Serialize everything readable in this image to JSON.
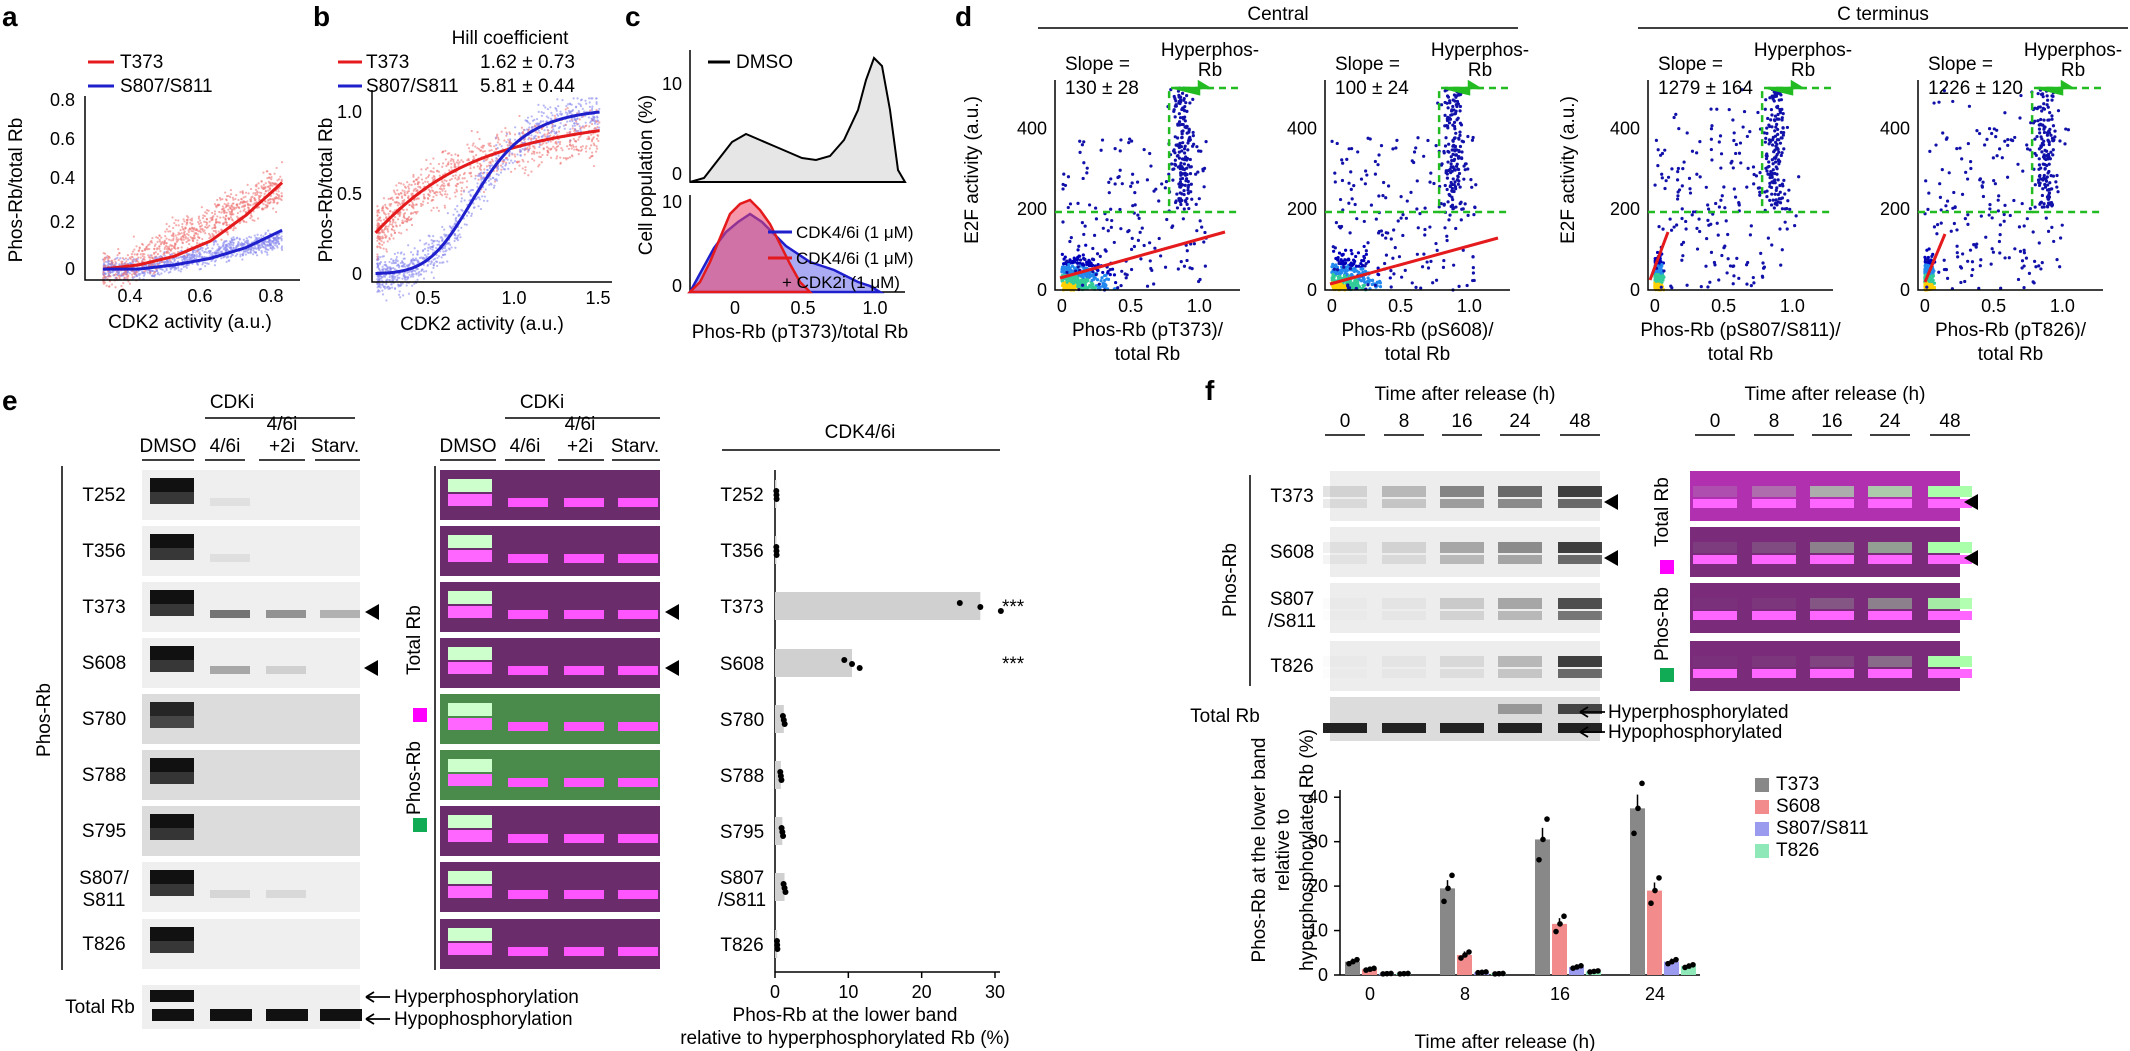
{
  "panels": {
    "a": "a",
    "b": "b",
    "c": "c",
    "d": "d",
    "e": "e",
    "f": "f"
  },
  "colors": {
    "red": "#e41a1c",
    "blue": "#1f1fcc",
    "green": "#22bb22",
    "gray": "#888888",
    "pink": "#f28c8c",
    "lavender": "#9a9aee",
    "mint": "#8ee8b8",
    "magenta": "#ff00ff"
  },
  "panel_a": {
    "xlabel": "CDK2 activity (a.u.)",
    "ylabel": "Phos-Rb/total Rb",
    "legend": [
      "T373",
      "S807/S811"
    ],
    "xticks": [
      "0.4",
      "0.6",
      "0.8"
    ],
    "yticks": [
      "0",
      "0.2",
      "0.4",
      "0.6",
      "0.8"
    ]
  },
  "panel_b": {
    "xlabel": "CDK2 activity (a.u.)",
    "ylabel": "Phos-Rb/total Rb",
    "legend": [
      "T373",
      "S807/S811"
    ],
    "hill_title": "Hill coefficient",
    "hill_values": [
      "1.62 ± 0.73",
      "5.81 ± 0.44"
    ],
    "xticks": [
      "0.5",
      "1.0",
      "1.5"
    ],
    "yticks": [
      "0",
      "0.5",
      "1.0"
    ]
  },
  "panel_c": {
    "ylabel": "Cell population (%)",
    "xlabel": "Phos-Rb (pT373)/total Rb",
    "legend_top": "DMSO",
    "legend_bottom": [
      "CDK4/6i (1 μM)",
      "CDK4/6i (1 μM)",
      "+ CDK2i (1 μM)"
    ],
    "yticks_top": [
      "0",
      "10"
    ],
    "yticks_bottom": [
      "0",
      "10"
    ],
    "xticks": [
      "0",
      "0.5",
      "1.0"
    ]
  },
  "panel_d": {
    "group_central": "Central",
    "group_cterm": "C terminus",
    "ylabel": "E2F activity (a.u.)",
    "hyper_label": [
      "Hyperphos-",
      "Rb"
    ],
    "yticks": [
      "0",
      "200",
      "400"
    ],
    "xticks": [
      "0",
      "0.5",
      "1.0"
    ],
    "subplots": [
      {
        "slope": "130 ± 28",
        "xlabel": [
          "Phos-Rb (pT373)/",
          "total Rb"
        ]
      },
      {
        "slope": "100 ± 24",
        "xlabel": [
          "Phos-Rb (pS608)/",
          "total Rb"
        ]
      },
      {
        "slope": "1279 ± 164",
        "xlabel": [
          "Phos-Rb (pS807/S811)/",
          "total Rb"
        ]
      },
      {
        "slope": "1226 ± 120",
        "xlabel": [
          "Phos-Rb (pT826)/",
          "total Rb"
        ]
      }
    ],
    "slope_label": "Slope ="
  },
  "panel_e": {
    "cdki": "CDKi",
    "lanes": [
      "DMSO",
      "4/6i",
      "4/6i",
      "+2i",
      "Starv."
    ],
    "sites": [
      "T252",
      "T356",
      "T373",
      "S608",
      "S780",
      "S788",
      "S795",
      "S807/",
      "S811",
      "T826"
    ],
    "phos_rb": "Phos-Rb",
    "total_rb": "Total Rb",
    "hyper": "Hyperphosphorylation",
    "hypo": "Hypophosphorylation",
    "merge_label_total": "Total Rb",
    "merge_label_phos": "Phos-Rb",
    "bar_title": "CDK4/6i",
    "bar_sites": [
      "T252",
      "T356",
      "T373",
      "S608",
      "S780",
      "S788",
      "S795",
      "S807",
      "/S811",
      "T826"
    ],
    "bar_values": [
      0.2,
      0.2,
      28.0,
      10.5,
      1.2,
      0.8,
      1.0,
      1.3,
      0.3
    ],
    "sig": "***",
    "bar_xticks": [
      "0",
      "10",
      "20",
      "30"
    ],
    "bar_xlabel": [
      "Phos-Rb at the lower band",
      "relative to hyperphosphorylated Rb (%)"
    ]
  },
  "panel_f": {
    "time_title": "Time after release (h)",
    "times": [
      "0",
      "8",
      "16",
      "24",
      "48"
    ],
    "sites": [
      "T373",
      "S608",
      "S807",
      "/S811",
      "T826"
    ],
    "phos_rb": "Phos-Rb",
    "total_rb": "Total Rb",
    "hyper": "Hyperphosphorylated",
    "hypo": "Hypophosphorylated",
    "merge_total": "Total Rb",
    "merge_phos": "Phos-Rb",
    "legend": [
      "T373",
      "S608",
      "S807/S811",
      "T826"
    ],
    "ylabel": [
      "Phos-Rb at the lower band",
      "relative to",
      "hyperphosphorylated Rb (%)"
    ],
    "xlabel": "Time after release (h)",
    "xticks": [
      "0",
      "8",
      "16",
      "24"
    ],
    "yticks": [
      "0",
      "10",
      "20",
      "30",
      "40"
    ]
  },
  "chart_data": [
    {
      "type": "scatter",
      "panel": "a",
      "xlabel": "CDK2 activity (a.u.)",
      "ylabel": "Phos-Rb/total Rb",
      "series": [
        {
          "name": "T373",
          "fit_x": [
            0.3,
            0.4,
            0.5,
            0.6,
            0.7,
            0.8
          ],
          "fit_y": [
            0.0,
            0.02,
            0.06,
            0.13,
            0.25,
            0.4
          ]
        },
        {
          "name": "S807/S811",
          "fit_x": [
            0.3,
            0.4,
            0.5,
            0.6,
            0.7,
            0.8
          ],
          "fit_y": [
            0.0,
            0.0,
            0.02,
            0.05,
            0.1,
            0.18
          ]
        }
      ],
      "xlim": [
        0.25,
        0.85
      ],
      "ylim": [
        -0.05,
        0.8
      ]
    },
    {
      "type": "scatter",
      "panel": "b",
      "xlabel": "CDK2 activity (a.u.)",
      "ylabel": "Phos-Rb/total Rb",
      "series": [
        {
          "name": "T373",
          "hill": 1.62
        },
        {
          "name": "S807/S811",
          "hill": 5.81
        }
      ],
      "xlim": [
        0.25,
        1.6
      ],
      "ylim": [
        -0.05,
        1.1
      ]
    },
    {
      "type": "bar",
      "panel": "e",
      "categories": [
        "T252",
        "T356",
        "T373",
        "S608",
        "S780",
        "S788",
        "S795",
        "S807/S811",
        "T826"
      ],
      "values": [
        0.2,
        0.2,
        28.0,
        10.5,
        1.2,
        0.8,
        1.0,
        1.3,
        0.3
      ],
      "xlim": [
        0,
        30
      ],
      "title": "CDK4/6i"
    },
    {
      "type": "bar",
      "panel": "f",
      "categories": [
        "0",
        "8",
        "16",
        "24"
      ],
      "series": [
        {
          "name": "T373",
          "values": [
            3,
            19.5,
            30.5,
            37.5
          ]
        },
        {
          "name": "S608",
          "values": [
            1.3,
            4.5,
            11.5,
            19
          ]
        },
        {
          "name": "S807/S811",
          "values": [
            0.3,
            0.6,
            1.8,
            3
          ]
        },
        {
          "name": "T826",
          "values": [
            0.3,
            0.3,
            0.8,
            2
          ]
        }
      ],
      "ylim": [
        0,
        45
      ],
      "xlabel": "Time after release (h)"
    }
  ]
}
